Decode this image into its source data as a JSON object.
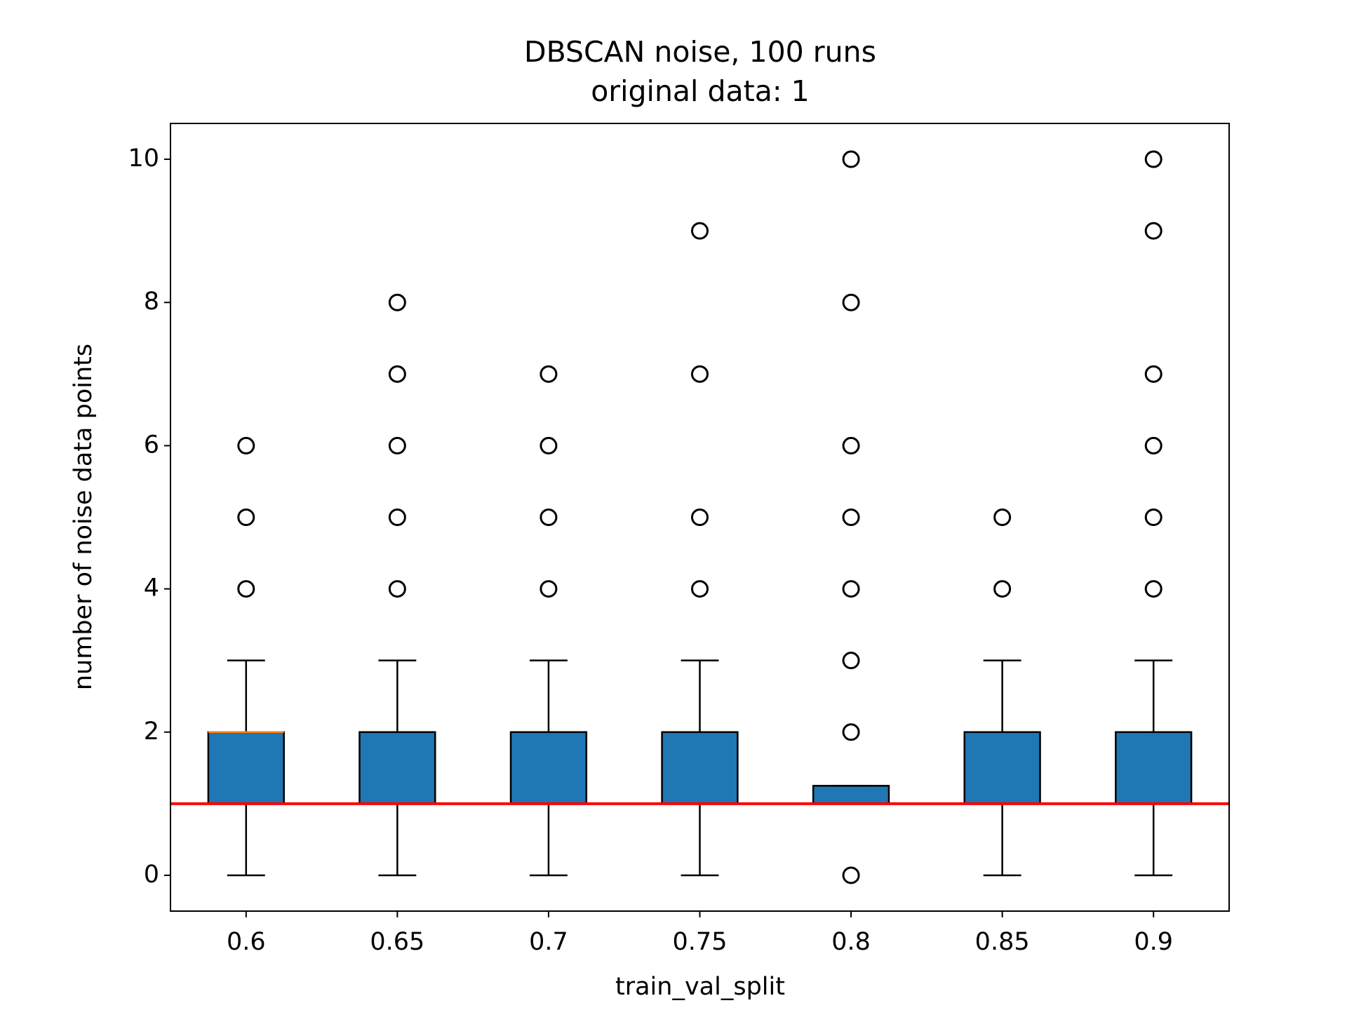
{
  "chart_data": {
    "type": "box",
    "title": "DBSCAN noise, 100 runs",
    "subtitle": "original data: 1",
    "x_label": "train_val_split",
    "y_label": "number of noise data points",
    "categories": [
      "0.6",
      "0.65",
      "0.7",
      "0.75",
      "0.8",
      "0.85",
      "0.9"
    ],
    "boxes": [
      {
        "whislo": 0,
        "q1": 1,
        "med": 2,
        "q3": 2,
        "whishi": 3,
        "fliers": [
          4,
          5,
          6
        ]
      },
      {
        "whislo": 0,
        "q1": 1,
        "med": 1,
        "q3": 2,
        "whishi": 3,
        "fliers": [
          4,
          5,
          6,
          7,
          8
        ]
      },
      {
        "whislo": 0,
        "q1": 1,
        "med": 1,
        "q3": 2,
        "whishi": 3,
        "fliers": [
          4,
          5,
          6,
          7
        ]
      },
      {
        "whislo": 0,
        "q1": 1,
        "med": 1,
        "q3": 2,
        "whishi": 3,
        "fliers": [
          4,
          5,
          7,
          9
        ]
      },
      {
        "whislo": 1,
        "q1": 1,
        "med": 1,
        "q3": 1.25,
        "whishi": 1.25,
        "fliers": [
          0,
          2,
          3,
          4,
          5,
          6,
          8,
          10
        ]
      },
      {
        "whislo": 0,
        "q1": 1,
        "med": 1,
        "q3": 2,
        "whishi": 3,
        "fliers": [
          4,
          5
        ]
      },
      {
        "whislo": 0,
        "q1": 1,
        "med": 1,
        "q3": 2,
        "whishi": 3,
        "fliers": [
          4,
          5,
          6,
          7,
          9,
          10
        ]
      }
    ],
    "reference_line": 1,
    "reference_color": "#ff0000",
    "box_color": "#1f77b4",
    "median_color": "#ff7f0e",
    "ylim": [
      -0.5,
      10.5
    ],
    "yticks": [
      0,
      2,
      4,
      6,
      8,
      10
    ]
  }
}
